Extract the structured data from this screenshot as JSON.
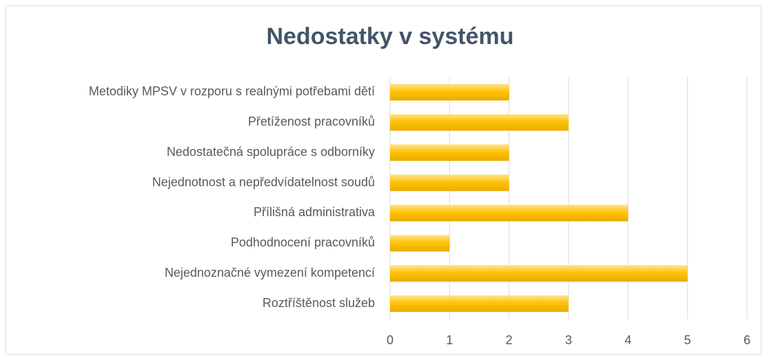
{
  "chart_data": {
    "type": "bar",
    "orientation": "horizontal",
    "title": "Nedostatky v systému",
    "categories": [
      "Metodiky MPSV v rozporu s realnými potřebami dětí",
      "Přetíženost pracovníků",
      "Nedostatečná spolupráce s odborníky",
      "Nejednotnost a nepředvídatelnost soudů",
      "Přílišná administrativa",
      "Podhodnocení pracovníků",
      "Nejednoznačné vymezení kompetencí",
      "Roztříštěnost služeb"
    ],
    "values": [
      2,
      3,
      2,
      2,
      4,
      1,
      5,
      3
    ],
    "color": "#ffc000",
    "xlim": [
      0,
      6
    ],
    "xticks": [
      0,
      1,
      2,
      3,
      4,
      5,
      6
    ],
    "grid": true
  }
}
